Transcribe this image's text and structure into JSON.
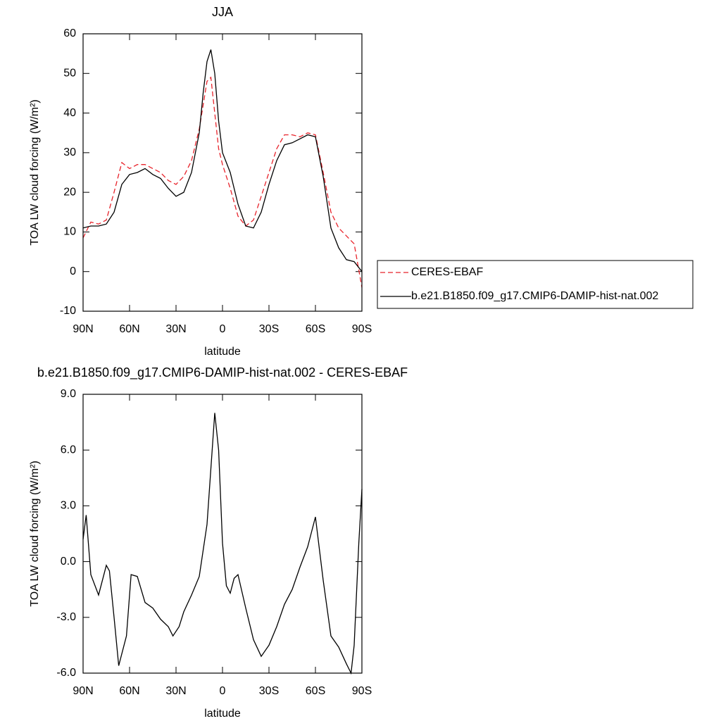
{
  "chart_data": [
    {
      "type": "line",
      "title": "JJA",
      "x_label": "latitude",
      "y_label": "TOA LW cloud forcing (W/m²)",
      "x": [
        90,
        85,
        80,
        75,
        70,
        65,
        60,
        55,
        50,
        45,
        40,
        35,
        30,
        25,
        20,
        15,
        12.5,
        10,
        7.5,
        5,
        2.5,
        0,
        -5,
        -10,
        -15,
        -20,
        -25,
        -30,
        -35,
        -40,
        -45,
        -50,
        -55,
        -60,
        -65,
        -70,
        -75,
        -80,
        -85,
        -90
      ],
      "series": [
        {
          "name": "CERES-EBAF",
          "color": "#e8232b",
          "dashed": true,
          "values": [
            8.5,
            12.5,
            12,
            13,
            20,
            27.5,
            26,
            27,
            27,
            26,
            25,
            23,
            22,
            24,
            28,
            36,
            42,
            48,
            49,
            40,
            31,
            27,
            21,
            14,
            11.5,
            13,
            19,
            25,
            31,
            34.5,
            34.5,
            34,
            35,
            34.5,
            25,
            15,
            11,
            9,
            7,
            -4
          ]
        },
        {
          "name": "b.e21.B1850.f09_g17.CMIP6-DAMIP-hist-nat.002",
          "color": "#000000",
          "dashed": false,
          "values": [
            11,
            11.5,
            11.5,
            12,
            15,
            22,
            24.5,
            25,
            26,
            24.5,
            23.5,
            21,
            19,
            20,
            25,
            35,
            45,
            53,
            56,
            50,
            38,
            30,
            25,
            17,
            11.5,
            11,
            15,
            22,
            28,
            32,
            32.5,
            33.5,
            34.5,
            34,
            24,
            11,
            6,
            3,
            2.5,
            0
          ]
        }
      ],
      "xlim": [
        90,
        -90
      ],
      "xticks": [
        {
          "value": 90,
          "label": "90N"
        },
        {
          "value": 60,
          "label": "60N"
        },
        {
          "value": 30,
          "label": "30N"
        },
        0,
        {
          "value": -30,
          "label": "30S"
        },
        {
          "value": -60,
          "label": "60S"
        },
        {
          "value": -90,
          "label": "90S"
        }
      ],
      "ylim": [
        -10,
        60
      ],
      "yticks": [
        -10,
        0,
        10,
        20,
        30,
        40,
        50,
        60
      ]
    },
    {
      "type": "line",
      "title": "b.e21.B1850.f09_g17.CMIP6-DAMIP-hist-nat.002 - CERES-EBAF",
      "x_label": "latitude",
      "y_label": "TOA LW cloud forcing (W/m²)",
      "x": [
        90,
        88,
        85,
        80,
        75,
        73,
        70,
        67,
        62,
        59,
        55,
        50,
        45,
        40,
        35,
        32,
        28,
        25,
        20,
        15,
        10,
        7.5,
        5,
        2.5,
        0,
        -2.5,
        -5,
        -7.5,
        -10,
        -15,
        -20,
        -25,
        -30,
        -35,
        -40,
        -45,
        -50,
        -55,
        -60,
        -65,
        -70,
        -75,
        -80,
        -83,
        -85,
        -88,
        -90
      ],
      "values": [
        1.2,
        2.5,
        -0.7,
        -1.8,
        -0.2,
        -0.5,
        -3,
        -5.6,
        -4,
        -0.7,
        -0.8,
        -2.2,
        -2.5,
        -3.1,
        -3.5,
        -4,
        -3.5,
        -2.7,
        -1.8,
        -0.8,
        2,
        5,
        8,
        6,
        1,
        -1.3,
        -1.7,
        -0.9,
        -0.7,
        -2.5,
        -4.2,
        -5.1,
        -4.5,
        -3.5,
        -2.3,
        -1.5,
        -0.3,
        0.8,
        2.4,
        -1,
        -4,
        -4.6,
        -5.5,
        -6,
        -4.5,
        1,
        3.9
      ],
      "color": "#000000",
      "xlim": [
        90,
        -90
      ],
      "xticks": [
        {
          "value": 90,
          "label": "90N"
        },
        {
          "value": 60,
          "label": "60N"
        },
        {
          "value": 30,
          "label": "30N"
        },
        0,
        {
          "value": -30,
          "label": "30S"
        },
        {
          "value": -60,
          "label": "60S"
        },
        {
          "value": -90,
          "label": "90S"
        }
      ],
      "ylim": [
        -6,
        9
      ],
      "yticks": [
        {
          "value": -6,
          "label": "-6.0"
        },
        {
          "value": -3,
          "label": "-3.0"
        },
        {
          "value": 0,
          "label": "0.0"
        },
        {
          "value": 3,
          "label": "3.0"
        },
        {
          "value": 6,
          "label": "6.0"
        },
        {
          "value": 9,
          "label": "9.0"
        }
      ]
    }
  ]
}
